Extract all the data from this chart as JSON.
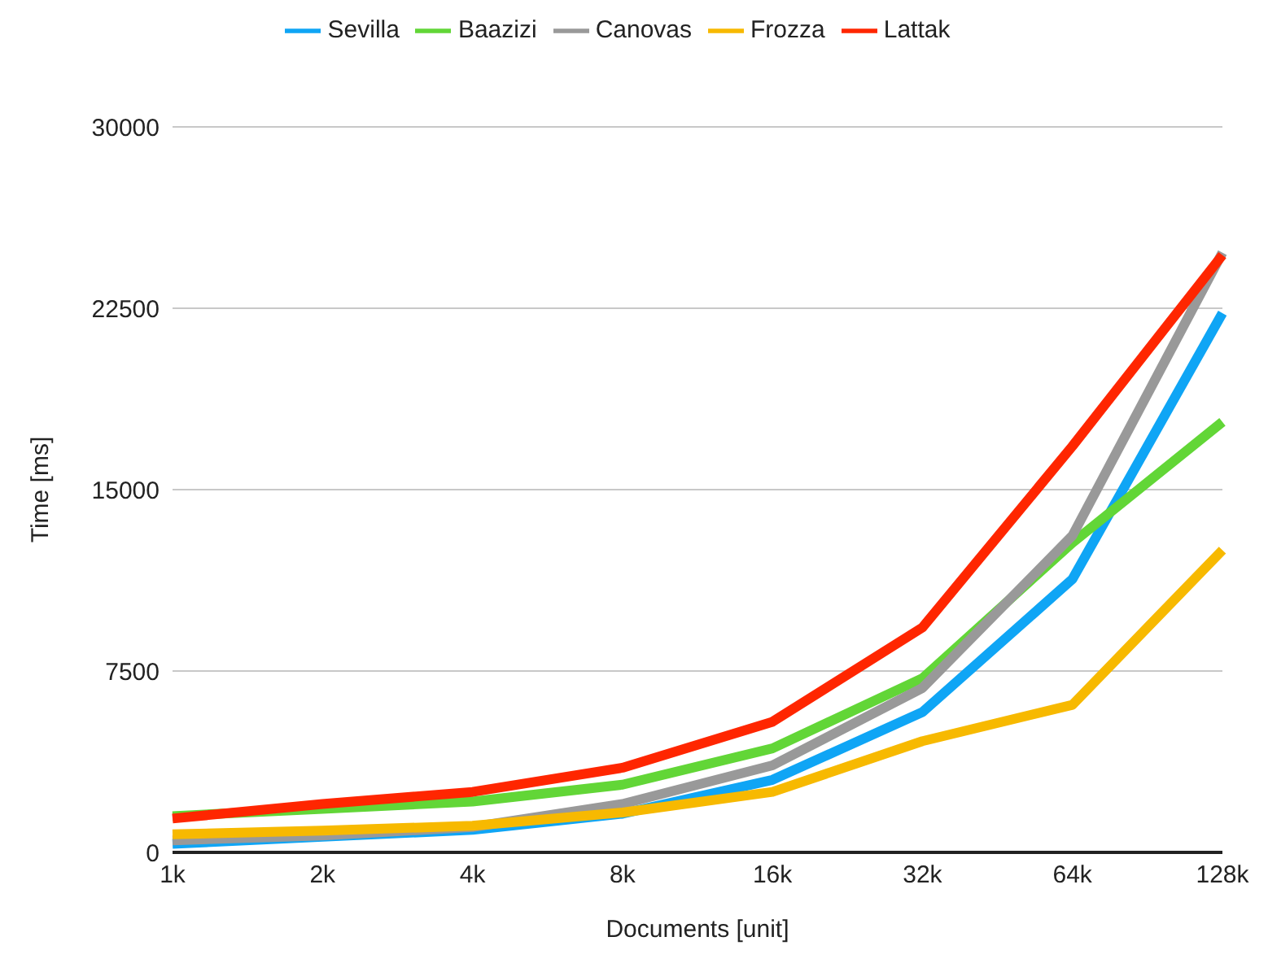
{
  "chart_data": {
    "type": "line",
    "xlabel": "Documents [unit]",
    "ylabel": "Time [ms]",
    "categories": [
      "1k",
      "2k",
      "4k",
      "8k",
      "16k",
      "32k",
      "64k",
      "128k"
    ],
    "series": [
      {
        "name": "Sevilla",
        "color": "#0fa5f5",
        "values": [
          350,
          650,
          930,
          1600,
          3000,
          5800,
          11300,
          22300
        ]
      },
      {
        "name": "Baazizi",
        "color": "#62d637",
        "values": [
          1500,
          1800,
          2100,
          2800,
          4300,
          7200,
          12800,
          17800
        ]
      },
      {
        "name": "Canovas",
        "color": "#999999",
        "values": [
          500,
          700,
          1050,
          2000,
          3600,
          6800,
          13100,
          24800
        ]
      },
      {
        "name": "Frozza",
        "color": "#f7b900",
        "values": [
          750,
          900,
          1100,
          1650,
          2500,
          4600,
          6100,
          12500
        ]
      },
      {
        "name": "Lattak",
        "color": "#ff2600",
        "values": [
          1400,
          2000,
          2500,
          3500,
          5400,
          9300,
          16800,
          24700
        ]
      }
    ],
    "ylim": [
      0,
      30000
    ],
    "yticks": [
      0,
      7500,
      15000,
      22500,
      30000
    ],
    "grid": "y",
    "legend": "top",
    "marker": "none",
    "line_style": "solid"
  }
}
